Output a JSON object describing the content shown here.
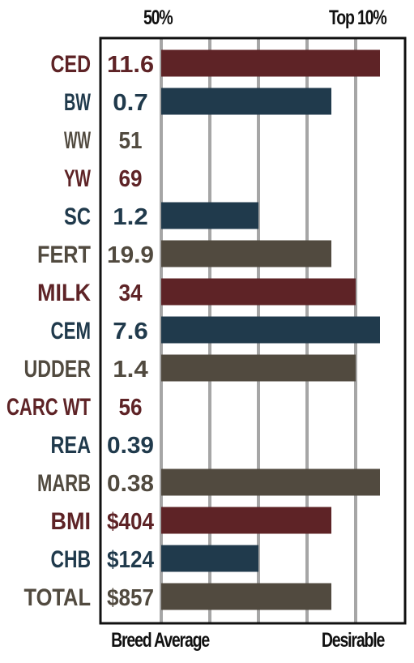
{
  "header": {
    "left_label": "50%",
    "right_label": "Top 10%"
  },
  "footer": {
    "left_label": "Breed Average",
    "right_label": "Desirable"
  },
  "colors": {
    "red": "#5e2326",
    "blue": "#203a4c",
    "brown": "#514a3f",
    "grid": "#a6a6a6",
    "border": "#111111"
  },
  "chart_data": {
    "type": "bar",
    "orientation": "horizontal",
    "scale_note": "bar length in gridline units from Breed Average (0) to Top 10% (4.5)",
    "xlim": [
      0,
      4.5
    ],
    "rows": [
      {
        "trait": "CED",
        "value": "11.6",
        "bar": 4.5,
        "color": "red"
      },
      {
        "trait": "BW",
        "value": "0.7",
        "bar": 3.5,
        "color": "blue"
      },
      {
        "trait": "WW",
        "value": "51",
        "bar": 0,
        "color": "brown"
      },
      {
        "trait": "YW",
        "value": "69",
        "bar": 0,
        "color": "red"
      },
      {
        "trait": "SC",
        "value": "1.2",
        "bar": 2.0,
        "color": "blue"
      },
      {
        "trait": "FERT",
        "value": "19.9",
        "bar": 3.5,
        "color": "brown"
      },
      {
        "trait": "MILK",
        "value": "34",
        "bar": 4.0,
        "color": "red"
      },
      {
        "trait": "CEM",
        "value": "7.6",
        "bar": 4.5,
        "color": "blue"
      },
      {
        "trait": "UDDER",
        "value": "1.4",
        "bar": 4.0,
        "color": "brown"
      },
      {
        "trait": "CARC WT",
        "value": "56",
        "bar": 0,
        "color": "red"
      },
      {
        "trait": "REA",
        "value": "0.39",
        "bar": 0,
        "color": "blue"
      },
      {
        "trait": "MARB",
        "value": "0.38",
        "bar": 4.5,
        "color": "brown"
      },
      {
        "trait": "BMI",
        "value": "$404",
        "bar": 3.5,
        "color": "red"
      },
      {
        "trait": "CHB",
        "value": "$124",
        "bar": 2.0,
        "color": "blue"
      },
      {
        "trait": "TOTAL",
        "value": "$857",
        "bar": 3.5,
        "color": "brown"
      }
    ]
  }
}
